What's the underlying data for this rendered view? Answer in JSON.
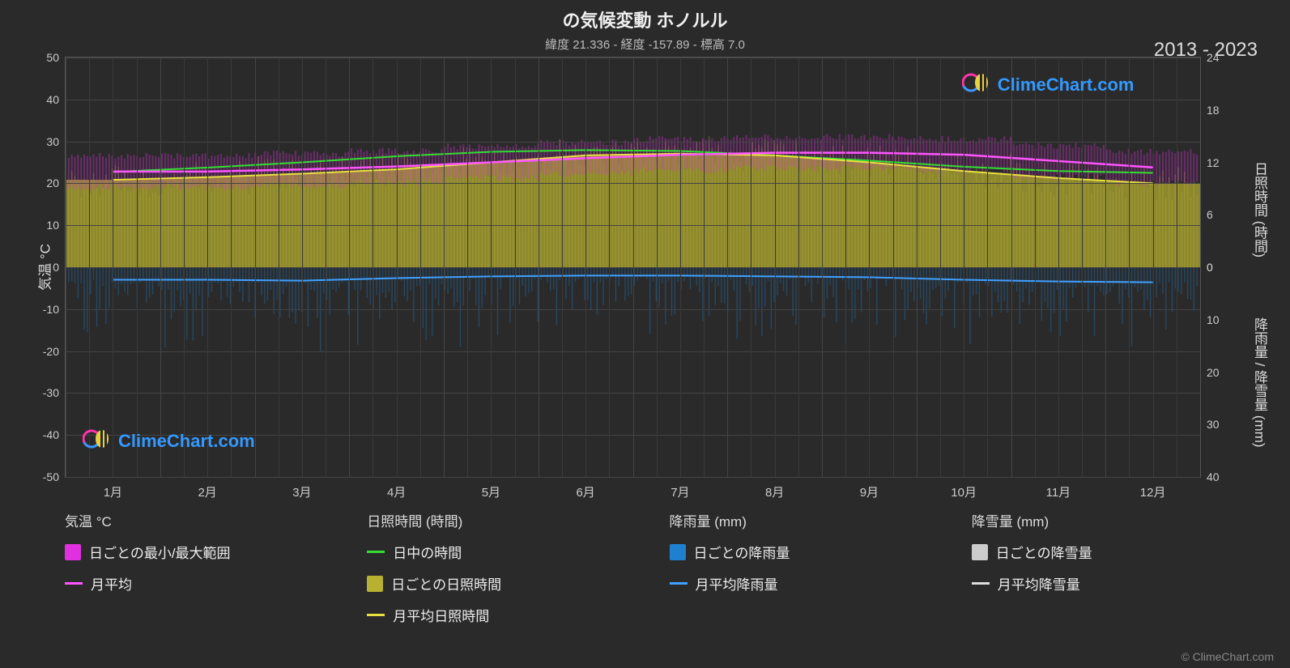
{
  "title": "の気候変動 ホノルル",
  "subtitle": "緯度 21.336 - 経度 -157.89 - 標高 7.0",
  "year_range": "2013 - 2023",
  "watermark_text": "ClimeChart.com",
  "watermark_color": "#3399ff",
  "credit": "© ClimeChart.com",
  "background_color": "#2a2a2a",
  "grid_color": "#444444",
  "grid_color_soft": "#3a3a3a",
  "text_color": "#e0e0e0",
  "axis_text_color": "#cccccc",
  "chart": {
    "left_axis": {
      "label": "気温 °C",
      "min": -50,
      "max": 50,
      "ticks": [
        -50,
        -40,
        -30,
        -20,
        -10,
        0,
        10,
        20,
        30,
        40,
        50
      ]
    },
    "right_axis_top": {
      "label": "日照時間 (時間)",
      "min": 0,
      "max": 24,
      "ticks": [
        0,
        6,
        12,
        18,
        24
      ],
      "tick_range_temp": [
        0,
        50
      ]
    },
    "right_axis_bottom": {
      "label": "降雨量 / 降雪量 (mm)",
      "min": 0,
      "max": 40,
      "ticks": [
        0,
        10,
        20,
        30,
        40
      ],
      "tick_range_temp": [
        0,
        -50
      ]
    },
    "months": [
      "1月",
      "2月",
      "3月",
      "4月",
      "5月",
      "6月",
      "7月",
      "8月",
      "9月",
      "10月",
      "11月",
      "12月"
    ],
    "series": {
      "temp_range_color": "#e030e0",
      "temp_avg_color": "#ff55ff",
      "daylight_line_color": "#33dd33",
      "sunshine_fill_color": "#b8b030",
      "sunshine_line_color": "#e8e040",
      "rain_fill_color": "#2080d0",
      "rain_line_color": "#40a0ff",
      "snow_fill_color": "#cccccc",
      "snow_line_color": "#dddddd",
      "temp_band": {
        "low": 19,
        "high": 30
      },
      "sunshine_band": {
        "low": 0,
        "high_avg": 20
      },
      "rain_band": {
        "low": 0,
        "high": -12
      },
      "temp_avg_values": [
        22.8,
        22.8,
        23.3,
        24.0,
        25.0,
        26.0,
        26.8,
        27.3,
        27.3,
        26.8,
        25.3,
        23.8
      ],
      "daylight_values": [
        10.9,
        11.4,
        12.0,
        12.7,
        13.2,
        13.4,
        13.3,
        12.8,
        12.2,
        11.5,
        11.0,
        10.8
      ],
      "sunshine_avg_values": [
        10.0,
        10.3,
        10.7,
        11.2,
        12.0,
        12.8,
        13.0,
        12.8,
        12.0,
        11.0,
        10.2,
        9.6
      ],
      "rain_avg_values": [
        -3.0,
        -3.0,
        -3.2,
        -2.6,
        -2.2,
        -2.0,
        -2.0,
        -2.2,
        -2.4,
        -3.0,
        -3.4,
        -3.6
      ],
      "snow_avg_values": [
        0,
        0,
        0,
        0,
        0,
        0,
        0,
        0,
        0,
        0,
        0,
        0
      ]
    }
  },
  "legend": {
    "cols": [
      {
        "header": "気温 °C",
        "items": [
          {
            "type": "sq",
            "color": "#e030e0",
            "label": "日ごとの最小/最大範囲"
          },
          {
            "type": "ln",
            "color": "#ff55ff",
            "label": "月平均"
          }
        ]
      },
      {
        "header": "日照時間 (時間)",
        "items": [
          {
            "type": "ln",
            "color": "#33dd33",
            "label": "日中の時間"
          },
          {
            "type": "sq",
            "color": "#b8b030",
            "label": "日ごとの日照時間"
          },
          {
            "type": "ln",
            "color": "#e8e040",
            "label": "月平均日照時間"
          }
        ]
      },
      {
        "header": "降雨量 (mm)",
        "items": [
          {
            "type": "sq",
            "color": "#2080d0",
            "label": "日ごとの降雨量"
          },
          {
            "type": "ln",
            "color": "#40a0ff",
            "label": "月平均降雨量"
          }
        ]
      },
      {
        "header": "降雪量 (mm)",
        "items": [
          {
            "type": "sq",
            "color": "#cccccc",
            "label": "日ごとの降雪量"
          },
          {
            "type": "ln",
            "color": "#dddddd",
            "label": "月平均降雪量"
          }
        ]
      }
    ]
  }
}
